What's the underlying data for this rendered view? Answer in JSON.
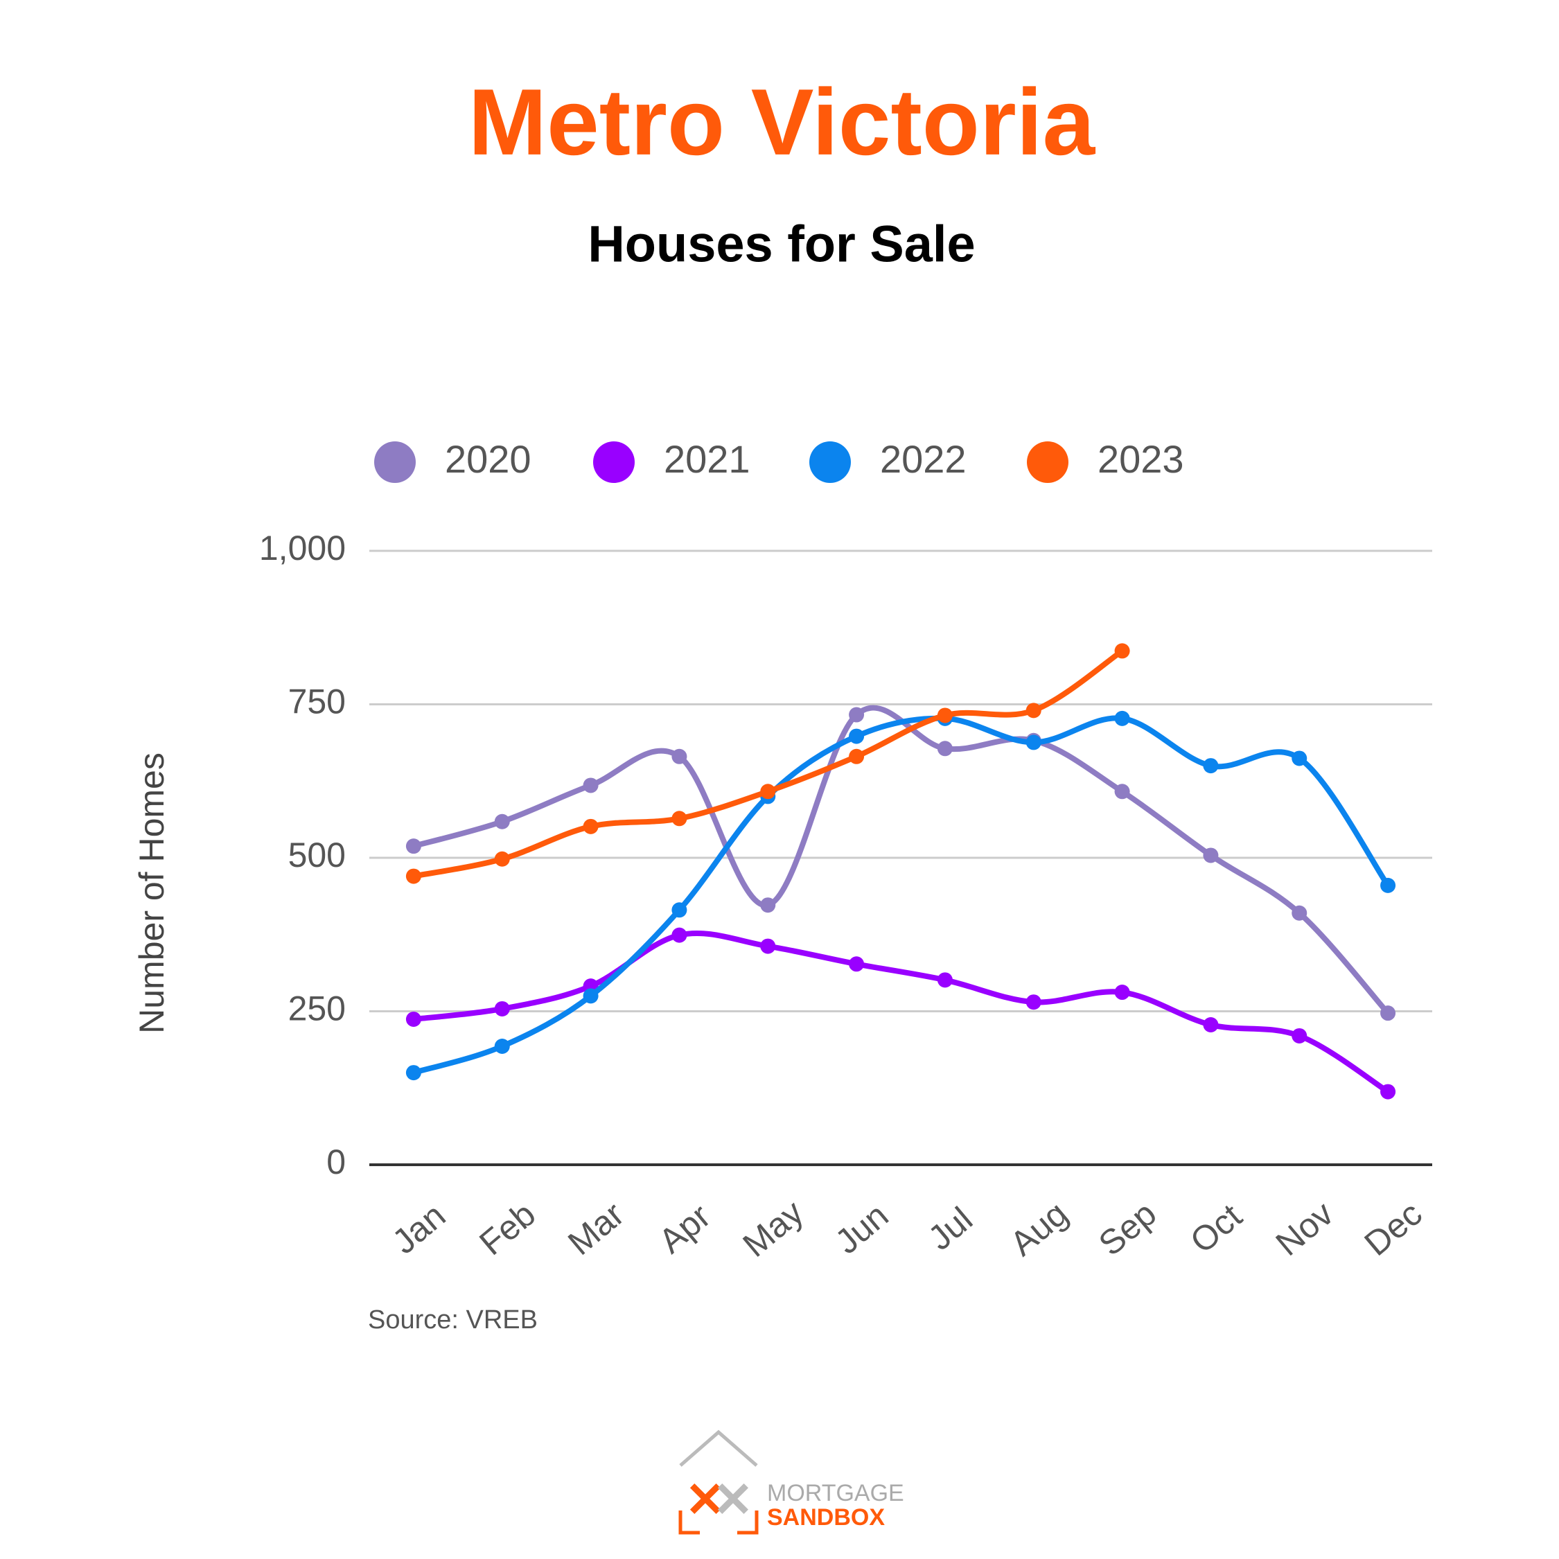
{
  "chart_data": {
    "type": "line",
    "title": "Metro Victoria",
    "subtitle": "Houses for Sale",
    "y_label": "Number of Homes",
    "source": "Source: VREB",
    "logo": {
      "line1": "MORTGAGE",
      "line2": "SANDBOX"
    },
    "categories": [
      "Jan",
      "Feb",
      "Mar",
      "Apr",
      "May",
      "Jun",
      "Jul",
      "Aug",
      "Sep",
      "Oct",
      "Nov",
      "Dec"
    ],
    "series": [
      {
        "name": "2020",
        "color": "#8e7cc3",
        "values": [
          519,
          559,
          618,
          665,
          423,
          733,
          678,
          691,
          608,
          504,
          410,
          247
        ]
      },
      {
        "name": "2021",
        "color": "#9900ff",
        "values": [
          237,
          254,
          291,
          374,
          356,
          327,
          301,
          265,
          281,
          228,
          210,
          119
        ]
      },
      {
        "name": "2022",
        "color": "#0b84ee",
        "values": [
          150,
          193,
          275,
          415,
          600,
          698,
          727,
          688,
          727,
          650,
          662,
          455
        ]
      },
      {
        "name": "2023",
        "color": "#ff5a0a",
        "values": [
          470,
          498,
          551,
          564,
          608,
          665,
          732,
          740,
          837,
          null,
          null,
          null
        ]
      }
    ],
    "ylim": [
      0,
      1000
    ],
    "yticks": [
      0,
      250,
      500,
      750,
      {
        "value": 1000,
        "label": "1,000"
      }
    ],
    "grid": true,
    "legend": "top"
  }
}
